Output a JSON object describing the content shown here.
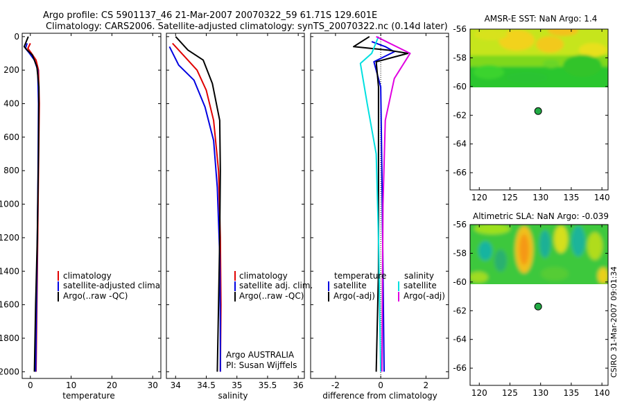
{
  "header": {
    "line1": "Argo profile: CS 5901137_46 21-Mar-2007 20070322_59 61.71S 129.601E",
    "line2": "Climatology: CARS2006. Satellite-adjusted climatology: synTS_20070322.nc (0.14d later)"
  },
  "side_credit": "CSIRO 31-Mar-2007 09:01:34",
  "colors": {
    "climatology": "#e00000",
    "satellite": "#0000e0",
    "argo": "#000000",
    "sal_satellite": "#00e0e0",
    "sal_argo": "#e000e0"
  },
  "chart_data": [
    {
      "type": "line",
      "title": "",
      "xlabel": "temperature",
      "ylabel": "",
      "xlim": [
        -2,
        32
      ],
      "ylim": [
        2040,
        -20
      ],
      "xticks": [
        "0",
        "10",
        "20",
        "30"
      ],
      "yticks": [
        "0",
        "200",
        "400",
        "600",
        "800",
        "1000",
        "1200",
        "1400",
        "1600",
        "1800",
        "2000"
      ],
      "legend": [
        "climatology",
        "satellite-adjusted climatology",
        "Argo(..raw -QC)"
      ],
      "legend_position": "bottom-right",
      "series": [
        {
          "name": "climatology",
          "color": "#e00000",
          "points": [
            [
              0.0,
              40
            ],
            [
              -0.6,
              70
            ],
            [
              0.3,
              100
            ],
            [
              1.4,
              140
            ],
            [
              2.0,
              200
            ],
            [
              2.2,
              400
            ],
            [
              2.0,
              800
            ],
            [
              1.8,
              1200
            ],
            [
              1.6,
              1600
            ],
            [
              1.4,
              2000
            ]
          ]
        },
        {
          "name": "satellite-adjusted climatology",
          "color": "#0000e0",
          "points": [
            [
              -0.8,
              40
            ],
            [
              -1.2,
              70
            ],
            [
              -0.2,
              100
            ],
            [
              1.0,
              140
            ],
            [
              1.8,
              200
            ],
            [
              2.0,
              400
            ],
            [
              1.9,
              800
            ],
            [
              1.7,
              1200
            ],
            [
              1.5,
              1600
            ],
            [
              1.3,
              2000
            ]
          ]
        },
        {
          "name": "Argo(..raw -QC)",
          "color": "#000000",
          "points": [
            [
              -0.5,
              0
            ],
            [
              -1.5,
              60
            ],
            [
              -0.8,
              80
            ],
            [
              0.5,
              110
            ],
            [
              1.6,
              180
            ],
            [
              2.1,
              300
            ],
            [
              2.0,
              700
            ],
            [
              1.7,
              1200
            ],
            [
              1.3,
              1600
            ],
            [
              1.0,
              2000
            ]
          ]
        }
      ]
    },
    {
      "type": "line",
      "xlabel": "salinity",
      "xlim": [
        33.85,
        36.1
      ],
      "ylim": [
        2040,
        -20
      ],
      "xticks": [
        "34",
        "34.5",
        "35",
        "35.5",
        "36"
      ],
      "legend": [
        "climatology",
        "satellite adj. clim.",
        "Argo(..raw -QC)"
      ],
      "legend_position": "bottom-right",
      "annotation": [
        "Argo AUSTRALIA",
        "PI: Susan Wijffels"
      ],
      "series": [
        {
          "name": "climatology",
          "color": "#e00000",
          "points": [
            [
              33.95,
              40
            ],
            [
              34.15,
              120
            ],
            [
              34.35,
              200
            ],
            [
              34.5,
              320
            ],
            [
              34.62,
              500
            ],
            [
              34.7,
              800
            ],
            [
              34.73,
              1200
            ],
            [
              34.74,
              1600
            ],
            [
              34.73,
              2000
            ]
          ]
        },
        {
          "name": "satellite adj. clim.",
          "color": "#0000e0",
          "points": [
            [
              33.9,
              60
            ],
            [
              34.05,
              170
            ],
            [
              34.3,
              260
            ],
            [
              34.48,
              420
            ],
            [
              34.62,
              620
            ],
            [
              34.68,
              900
            ],
            [
              34.72,
              1300
            ],
            [
              34.73,
              1700
            ],
            [
              34.73,
              2000
            ]
          ]
        },
        {
          "name": "Argo(..raw -QC)",
          "color": "#000000",
          "points": [
            [
              34.0,
              0
            ],
            [
              34.2,
              80
            ],
            [
              34.45,
              140
            ],
            [
              34.6,
              280
            ],
            [
              34.72,
              500
            ],
            [
              34.73,
              800
            ],
            [
              34.72,
              1200
            ],
            [
              34.7,
              1600
            ],
            [
              34.68,
              2000
            ]
          ]
        }
      ]
    },
    {
      "type": "line",
      "xlabel": "difference from climatology",
      "xlim": [
        -3.1,
        3.0
      ],
      "ylim": [
        2040,
        -20
      ],
      "xticks": [
        "-2",
        "0",
        "2"
      ],
      "legend_headers": [
        "temperature",
        "salinity"
      ],
      "legend": [
        "satellite",
        "Argo(-adj)",
        "satellite",
        "Argo(-adj)"
      ],
      "legend_position": "bottom",
      "series": [
        {
          "name": "temperature satellite",
          "color": "#0000e0",
          "points": [
            [
              -0.4,
              30
            ],
            [
              0.2,
              60
            ],
            [
              0.6,
              90
            ],
            [
              -0.3,
              150
            ],
            [
              0.0,
              300
            ],
            [
              0.05,
              800
            ],
            [
              0.1,
              1400
            ],
            [
              0.15,
              2000
            ]
          ]
        },
        {
          "name": "temperature Argo(-adj)",
          "color": "#000000",
          "points": [
            [
              -0.5,
              0
            ],
            [
              -1.2,
              60
            ],
            [
              0.3,
              80
            ],
            [
              1.2,
              100
            ],
            [
              -0.2,
              150
            ],
            [
              -0.1,
              300
            ],
            [
              -0.1,
              800
            ],
            [
              -0.1,
              1400
            ],
            [
              -0.2,
              2000
            ]
          ]
        },
        {
          "name": "salinity satellite",
          "color": "#00e0e0",
          "points": [
            [
              -0.1,
              0
            ],
            [
              -0.4,
              100
            ],
            [
              -0.9,
              160
            ],
            [
              -0.6,
              400
            ],
            [
              -0.2,
              700
            ],
            [
              -0.1,
              1200
            ],
            [
              0.0,
              2000
            ]
          ]
        },
        {
          "name": "salinity Argo(-adj)",
          "color": "#e000e0",
          "points": [
            [
              -0.2,
              0
            ],
            [
              1.3,
              100
            ],
            [
              0.6,
              250
            ],
            [
              0.2,
              500
            ],
            [
              0.1,
              1000
            ],
            [
              0.05,
              2000
            ]
          ]
        }
      ]
    },
    {
      "type": "heatmap",
      "title": "AMSR-E SST: NaN Argo: 1.4",
      "xticks": [
        "120",
        "125",
        "130",
        "135",
        "140"
      ],
      "yticks": [
        "-56",
        "-58",
        "-60",
        "-62",
        "-64",
        "-66"
      ],
      "xlim": [
        118.5,
        141
      ],
      "ylim": [
        -56,
        -67.2
      ],
      "data_region_lat": [
        -56,
        -60
      ],
      "marker": {
        "lon": 129.601,
        "lat": -61.71
      }
    },
    {
      "type": "heatmap",
      "title": "Altimetric SLA: NaN Argo: -0.039",
      "xticks": [
        "120",
        "125",
        "130",
        "135",
        "140"
      ],
      "yticks": [
        "-56",
        "-58",
        "-60",
        "-62",
        "-64",
        "-66"
      ],
      "xlim": [
        118.5,
        141
      ],
      "ylim": [
        -56,
        -67.2
      ],
      "data_region_lat": [
        -56,
        -60
      ],
      "marker": {
        "lon": 129.601,
        "lat": -61.71
      }
    }
  ]
}
